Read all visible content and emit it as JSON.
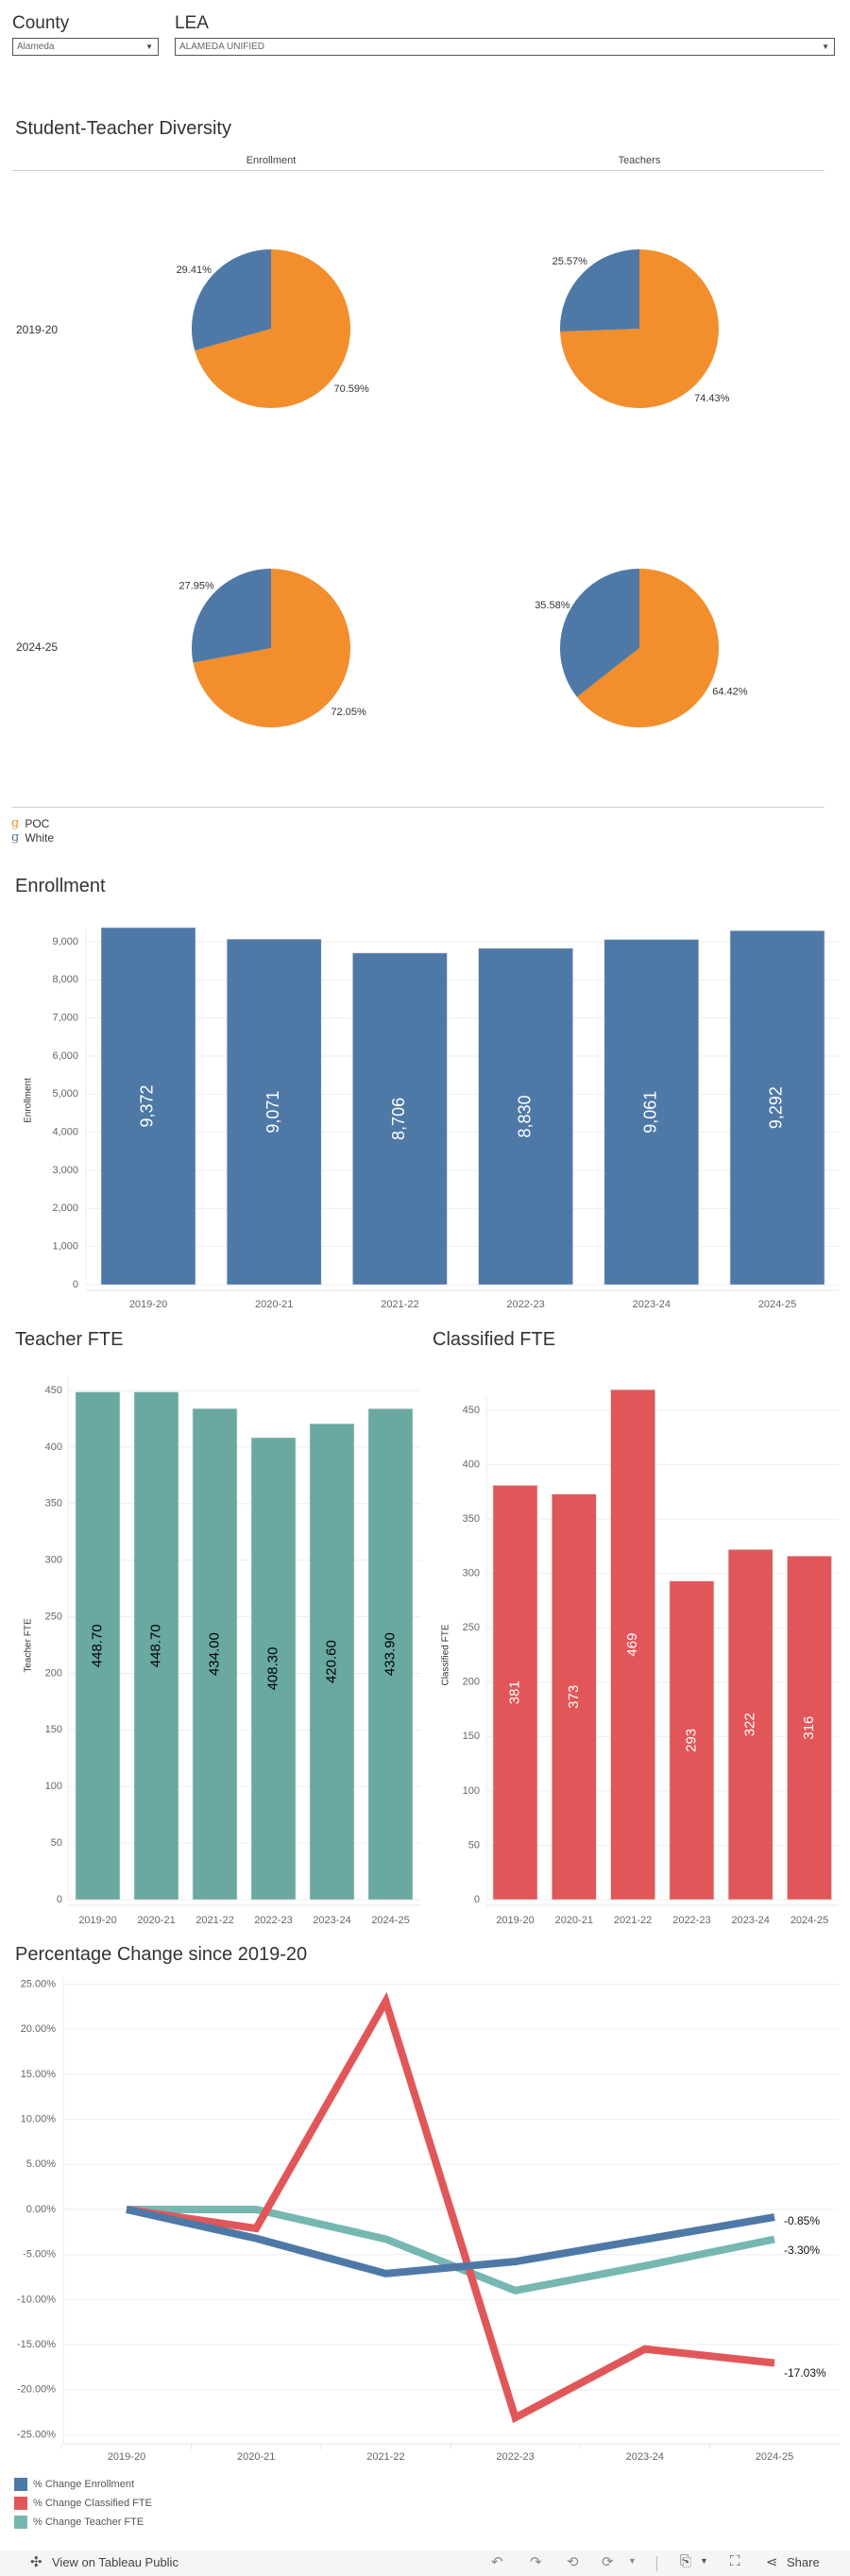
{
  "filters": {
    "county": {
      "label": "County",
      "value": "Alameda"
    },
    "lea": {
      "label": "LEA",
      "value": "ALAMEDA UNIFIED"
    }
  },
  "diversity": {
    "title": "Student-Teacher Diversity",
    "columns": [
      "Enrollment",
      "Teachers"
    ],
    "colors": {
      "POC": "#f28e2b",
      "White": "#4e79a7"
    },
    "rows": [
      {
        "year": "2019-20",
        "enrollment": {
          "poc": 70.59,
          "white": 29.41,
          "poc_label": "70.59%",
          "white_label": "29.41%"
        },
        "teachers": {
          "poc": 74.43,
          "white": 25.57,
          "poc_label": "74.43%",
          "white_label": "25.57%"
        }
      },
      {
        "year": "2024-25",
        "enrollment": {
          "poc": 72.05,
          "white": 27.95,
          "poc_label": "72.05%",
          "white_label": "27.95%"
        },
        "teachers": {
          "poc": 64.42,
          "white": 35.58,
          "poc_label": "64.42%",
          "white_label": "35.58%"
        }
      }
    ],
    "legend": [
      {
        "glyph": "g",
        "label": "POC",
        "color": "#f28e2b"
      },
      {
        "glyph": "g",
        "label": "White",
        "color": "#4e79a7"
      }
    ]
  },
  "chart_data": [
    {
      "id": "enrollment",
      "type": "bar",
      "title": "Enrollment",
      "ylabel": "Enrollment",
      "categories": [
        "2019-20",
        "2020-21",
        "2021-22",
        "2022-23",
        "2023-24",
        "2024-25"
      ],
      "values": [
        9372,
        9071,
        8706,
        8830,
        9061,
        9292
      ],
      "value_labels": [
        "9,372",
        "9,071",
        "8,706",
        "8,830",
        "9,061",
        "9,292"
      ],
      "yticks": [
        "0",
        "1,000",
        "2,000",
        "3,000",
        "4,000",
        "5,000",
        "6,000",
        "7,000",
        "8,000",
        "9,000"
      ],
      "ylim": [
        0,
        9000
      ],
      "color": "#4e79a7",
      "label_color": "#ffffff",
      "grid": true
    },
    {
      "id": "teacher_fte",
      "type": "bar",
      "title": "Teacher FTE",
      "ylabel": "Teacher FTE",
      "categories": [
        "2019-20",
        "2020-21",
        "2021-22",
        "2022-23",
        "2023-24",
        "2024-25"
      ],
      "values": [
        448.7,
        448.7,
        434.0,
        408.3,
        420.6,
        433.9
      ],
      "value_labels": [
        "448.70",
        "448.70",
        "434.00",
        "408.30",
        "420.60",
        "433.90"
      ],
      "yticks": [
        "0",
        "50",
        "100",
        "150",
        "200",
        "250",
        "300",
        "350",
        "400",
        "450"
      ],
      "ylim": [
        0,
        450
      ],
      "color": "#69a9a1",
      "label_color": "#000000",
      "grid": true
    },
    {
      "id": "classified_fte",
      "type": "bar",
      "title": "Classified FTE",
      "ylabel": "Classified FTE",
      "categories": [
        "2019-20",
        "2020-21",
        "2021-22",
        "2022-23",
        "2023-24",
        "2024-25"
      ],
      "values": [
        381,
        373,
        469,
        293,
        322,
        316
      ],
      "value_labels": [
        "381",
        "373",
        "469",
        "293",
        "322",
        "316"
      ],
      "yticks": [
        "0",
        "50",
        "100",
        "150",
        "200",
        "250",
        "300",
        "350",
        "400",
        "450"
      ],
      "ylim": [
        0,
        450
      ],
      "color": "#e15759",
      "label_color": "#ffffff",
      "grid": true
    },
    {
      "id": "pct_change",
      "type": "line",
      "title": "Percentage Change since 2019-20",
      "categories": [
        "2019-20",
        "2020-21",
        "2021-22",
        "2022-23",
        "2023-24",
        "2024-25"
      ],
      "yticks": [
        "25.00%",
        "20.00%",
        "15.00%",
        "10.00%",
        "5.00%",
        "0.00%",
        "-5.00%",
        "-10.00%",
        "-15.00%",
        "-20.00%",
        "-25.00%"
      ],
      "ylim": [
        -25,
        25
      ],
      "grid": true,
      "legend_position": "bottom-left",
      "series": [
        {
          "name": "% Change Enrollment",
          "color": "#4e79a7",
          "values": [
            0,
            -3.21,
            -7.11,
            -5.78,
            -3.32,
            -0.85
          ],
          "end_label": "-0.85%"
        },
        {
          "name": "% Change Classified FTE",
          "color": "#e15759",
          "values": [
            0,
            -2.1,
            23.1,
            -23.1,
            -15.49,
            -17.03
          ],
          "end_label": "-17.03%"
        },
        {
          "name": "% Change Teacher FTE",
          "color": "#76b7b2",
          "values": [
            0,
            0,
            -3.28,
            -9.0,
            -6.26,
            -3.3
          ],
          "end_label": "-3.30%"
        }
      ]
    }
  ],
  "footer": {
    "view_label": "View on Tableau Public",
    "share_label": "Share"
  }
}
